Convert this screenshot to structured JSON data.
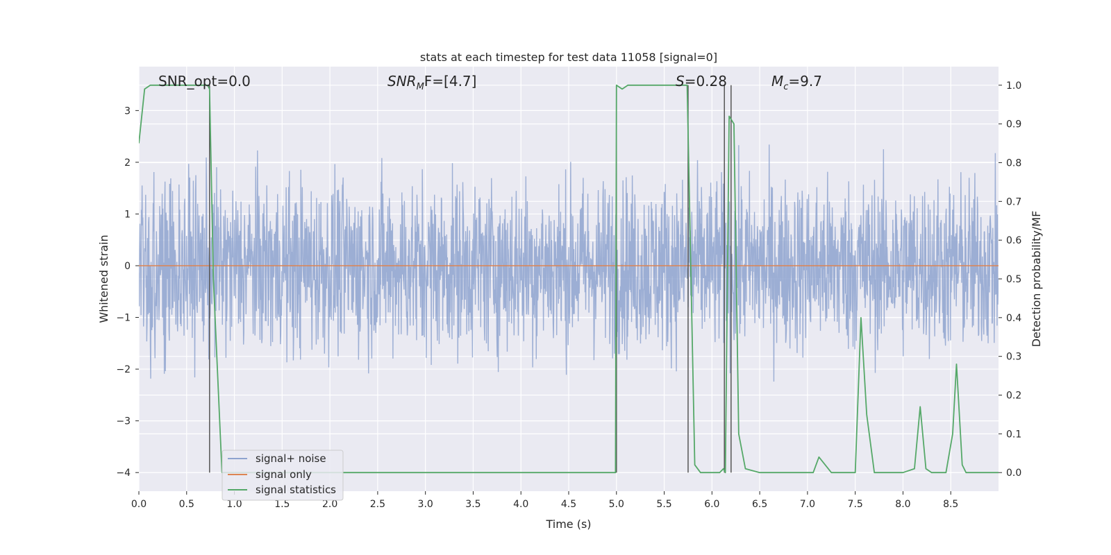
{
  "chart_data": {
    "type": "line",
    "title": "stats at each timestep for test data 11058 [signal=0]",
    "xlabel": "Time (s)",
    "ylabel": "Whitened strain",
    "y2label": "Detection probability/MF",
    "xlim": [
      0.0,
      9.0
    ],
    "ylim": [
      -4.36,
      3.85
    ],
    "y2lim": [
      -0.048,
      1.048
    ],
    "xticks": [
      "0.0",
      "0.5",
      "1.0",
      "1.5",
      "2.0",
      "2.5",
      "3.0",
      "3.5",
      "4.0",
      "4.5",
      "5.0",
      "5.5",
      "6.0",
      "6.5",
      "7.0",
      "7.5",
      "8.0",
      "8.5"
    ],
    "yticks": [
      "3",
      "2",
      "1",
      "0",
      "−1",
      "−2",
      "−3",
      "−4"
    ],
    "y2ticks": [
      "1.0",
      "0.9",
      "0.8",
      "0.7",
      "0.6",
      "0.5",
      "0.4",
      "0.3",
      "0.2",
      "0.1",
      "0.0"
    ],
    "grid": true,
    "legend_position": "lower-left",
    "annotations": {
      "snr_opt": "SNR_opt=0.0",
      "snr_mf_base": "SNR",
      "snr_mf_sub": "M",
      "snr_mf_rest": "F=[4.7]",
      "s_sym": "S",
      "s_rest": "=0.28",
      "mc_base": "M",
      "mc_sub": "c",
      "mc_rest": "=9.7"
    },
    "series": [
      {
        "name": "signal+ noise",
        "color": "#8ea3cf",
        "style": "noise",
        "amplitude_typical": 1.5,
        "max": 3.2,
        "min": -3.55
      },
      {
        "name": "signal only",
        "color": "#dd8452",
        "x": [
          0.0,
          9.0
        ],
        "y": [
          0.0,
          0.0
        ]
      },
      {
        "name": "signal statistics",
        "color": "#55a868",
        "axis": "right",
        "x": [
          0.0,
          0.06,
          0.12,
          0.5,
          0.72,
          0.74,
          0.78,
          0.87,
          0.9,
          1.5,
          2.0,
          2.5,
          3.0,
          3.5,
          4.0,
          4.5,
          4.99,
          5.0,
          5.06,
          5.12,
          5.5,
          5.74,
          5.82,
          5.88,
          6.0,
          6.08,
          6.12,
          6.14,
          6.18,
          6.23,
          6.28,
          6.35,
          6.5,
          7.0,
          7.06,
          7.12,
          7.25,
          7.5,
          7.56,
          7.62,
          7.7,
          8.0,
          8.12,
          8.18,
          8.24,
          8.3,
          8.45,
          8.52,
          8.56,
          8.62,
          8.66,
          8.7,
          9.0
        ],
        "y": [
          0.85,
          0.99,
          1.0,
          1.0,
          1.0,
          0.99,
          0.5,
          0.0,
          0.0,
          0.0,
          0.0,
          0.0,
          0.0,
          0.0,
          0.0,
          0.0,
          0.0,
          1.0,
          0.99,
          1.0,
          1.0,
          1.0,
          0.02,
          0.0,
          0.0,
          0.0,
          0.01,
          0.0,
          0.92,
          0.9,
          0.1,
          0.01,
          0.0,
          0.0,
          0.0,
          0.04,
          0.0,
          0.0,
          0.4,
          0.15,
          0.0,
          0.0,
          0.01,
          0.17,
          0.01,
          0.0,
          0.0,
          0.1,
          0.28,
          0.02,
          0.0,
          0.0,
          0.0
        ]
      }
    ],
    "vertical_markers": {
      "color": "#555555",
      "x": [
        0.74,
        5.0,
        5.75,
        6.13,
        6.2
      ]
    }
  }
}
